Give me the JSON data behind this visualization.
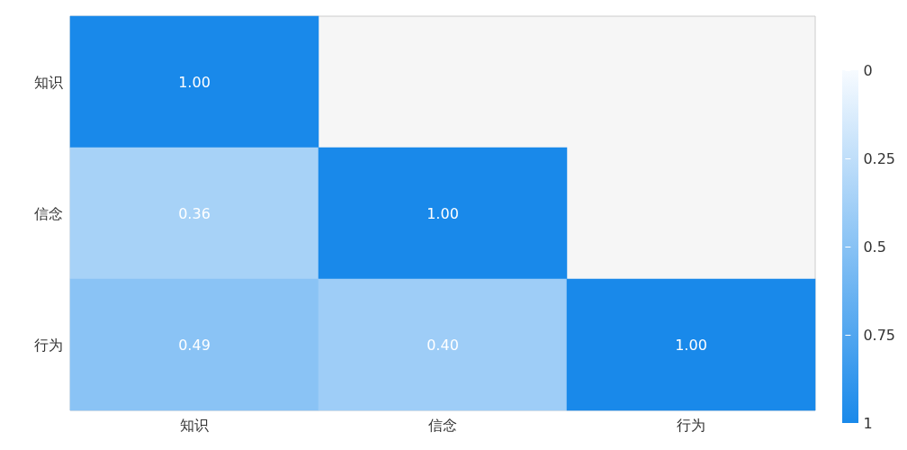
{
  "chart_data": {
    "type": "heatmap",
    "categories": [
      "知识",
      "信念",
      "行为"
    ],
    "y_categories": [
      "知识",
      "信念",
      "行为"
    ],
    "cells": [
      [
        1.0,
        null,
        null
      ],
      [
        0.36,
        1.0,
        null
      ],
      [
        0.49,
        0.4,
        1.0
      ]
    ],
    "cell_labels": [
      [
        "1.00",
        null,
        null
      ],
      [
        "0.36",
        "1.00",
        null
      ],
      [
        "0.49",
        "0.40",
        "1.00"
      ]
    ],
    "data_labels": true,
    "clim": [
      0,
      1
    ],
    "cticks": [
      0,
      0.25,
      0.5,
      0.75,
      1
    ]
  }
}
